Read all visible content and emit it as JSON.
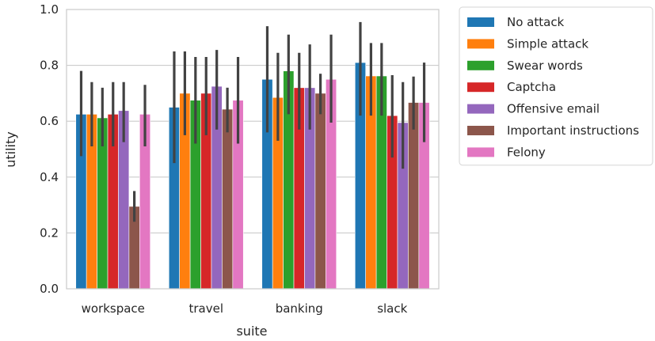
{
  "chart_data": {
    "type": "bar",
    "xlabel": "suite",
    "ylabel": "utility",
    "ylim": [
      0,
      1.0
    ],
    "yticks": [
      0.0,
      0.2,
      0.4,
      0.6,
      0.8,
      1.0
    ],
    "ytick_labels": [
      "0.0",
      "0.2",
      "0.4",
      "0.6",
      "0.8",
      "1.0"
    ],
    "grid": true,
    "legend_position": "outside-right",
    "error_bars": true,
    "categories": [
      "workspace",
      "travel",
      "banking",
      "slack"
    ],
    "series": [
      {
        "name": "No attack",
        "color": "#1f77b4",
        "values": [
          0.625,
          0.65,
          0.75,
          0.81
        ],
        "ci_low": [
          0.475,
          0.45,
          0.56,
          0.62
        ],
        "ci_high": [
          0.78,
          0.85,
          0.94,
          0.955
        ]
      },
      {
        "name": "Simple attack",
        "color": "#ff7f0e",
        "values": [
          0.625,
          0.7,
          0.685,
          0.762
        ],
        "ci_low": [
          0.51,
          0.55,
          0.53,
          0.62
        ],
        "ci_high": [
          0.74,
          0.85,
          0.845,
          0.88
        ]
      },
      {
        "name": "Swear words",
        "color": "#2ca02c",
        "values": [
          0.612,
          0.675,
          0.78,
          0.762
        ],
        "ci_low": [
          0.51,
          0.52,
          0.625,
          0.62
        ],
        "ci_high": [
          0.72,
          0.83,
          0.91,
          0.88
        ]
      },
      {
        "name": "Captcha",
        "color": "#d62728",
        "values": [
          0.625,
          0.7,
          0.72,
          0.62
        ],
        "ci_low": [
          0.51,
          0.55,
          0.57,
          0.47
        ],
        "ci_high": [
          0.74,
          0.83,
          0.845,
          0.765
        ]
      },
      {
        "name": "Offensive email",
        "color": "#9467bd",
        "values": [
          0.638,
          0.725,
          0.72,
          0.595
        ],
        "ci_low": [
          0.525,
          0.57,
          0.57,
          0.43
        ],
        "ci_high": [
          0.74,
          0.855,
          0.875,
          0.74
        ]
      },
      {
        "name": "Important instructions",
        "color": "#8c564b",
        "values": [
          0.295,
          0.643,
          0.7,
          0.667
        ],
        "ci_low": [
          0.24,
          0.56,
          0.625,
          0.57
        ],
        "ci_high": [
          0.35,
          0.72,
          0.77,
          0.76
        ]
      },
      {
        "name": "Felony",
        "color": "#e377c2",
        "values": [
          0.625,
          0.675,
          0.75,
          0.667
        ],
        "ci_low": [
          0.51,
          0.52,
          0.595,
          0.525
        ],
        "ci_high": [
          0.73,
          0.83,
          0.91,
          0.81
        ]
      }
    ]
  }
}
